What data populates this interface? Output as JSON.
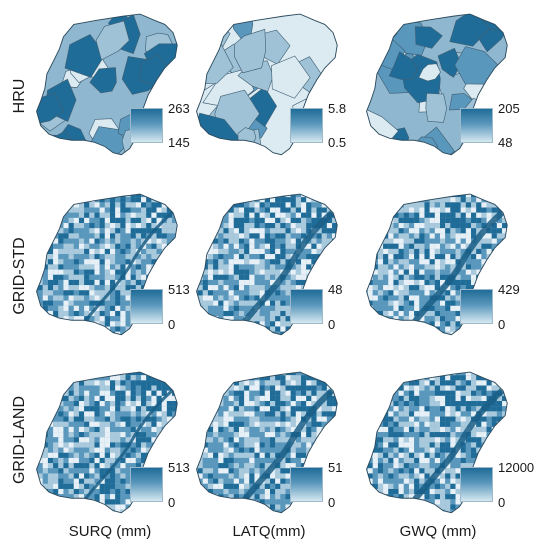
{
  "rows": [
    {
      "label": "HRU",
      "legends": [
        {
          "max": "263",
          "min": "145"
        },
        {
          "max": "5.8",
          "min": "0.5"
        },
        {
          "max": "205",
          "min": "48"
        }
      ]
    },
    {
      "label": "GRID-STD",
      "legends": [
        {
          "max": "513",
          "min": "0"
        },
        {
          "max": "48",
          "min": "0"
        },
        {
          "max": "429",
          "min": "0"
        }
      ]
    },
    {
      "label": "GRID-LAND",
      "legends": [
        {
          "max": "513",
          "min": "0"
        },
        {
          "max": "51",
          "min": "0"
        },
        {
          "max": "12000",
          "min": "0"
        }
      ]
    }
  ],
  "columns": [
    {
      "label": "SURQ (mm)"
    },
    {
      "label": "LATQ(mm)"
    },
    {
      "label": "GWQ (mm)"
    }
  ],
  "colors": {
    "dark": "#1f6c98",
    "mid": "#5a97bc",
    "light": "#d6e8f1",
    "outline": "#2c4a5e"
  }
}
